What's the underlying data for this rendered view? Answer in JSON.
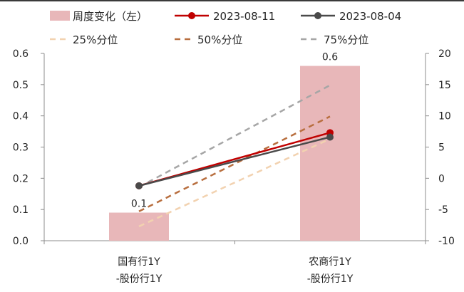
{
  "chart_data": {
    "type": "bar",
    "categories": [
      [
        "国有行1Y",
        "-股份行1Y"
      ],
      [
        "农商行1Y",
        "-股份行1Y"
      ]
    ],
    "left_axis": {
      "ylim": [
        0,
        0.6
      ],
      "ticks": [
        "0.0",
        "0.1",
        "0.2",
        "0.3",
        "0.4",
        "0.5",
        "0.6"
      ]
    },
    "right_axis": {
      "ylim": [
        -10,
        20
      ],
      "ticks": [
        "-10",
        "-5",
        "0",
        "5",
        "10",
        "15",
        "20"
      ]
    },
    "bars": {
      "name": "周度变化（左）",
      "axis": "left",
      "values": [
        0.09,
        0.56
      ],
      "labels": [
        "0.1",
        "0.6"
      ],
      "color": "#e8b7b9"
    },
    "series": [
      {
        "name": "2023-08-11",
        "axis": "right",
        "values": [
          -1.2,
          7.3
        ],
        "color": "#c00000",
        "style": "solid-marker"
      },
      {
        "name": "2023-08-04",
        "axis": "right",
        "values": [
          -1.2,
          6.6
        ],
        "color": "#4a4a4a",
        "style": "solid-marker"
      },
      {
        "name": "25%分位",
        "axis": "right",
        "values": [
          -7.7,
          6.3
        ],
        "color": "#f2d2b0",
        "style": "dashed"
      },
      {
        "name": "50%分位",
        "axis": "right",
        "values": [
          -5.3,
          9.9
        ],
        "color": "#b86e3e",
        "style": "dashed"
      },
      {
        "name": "75%分位",
        "axis": "right",
        "values": [
          -1.4,
          14.9
        ],
        "color": "#a6a6a6",
        "style": "dashed"
      }
    ],
    "legend_position": "top",
    "grid": false
  }
}
